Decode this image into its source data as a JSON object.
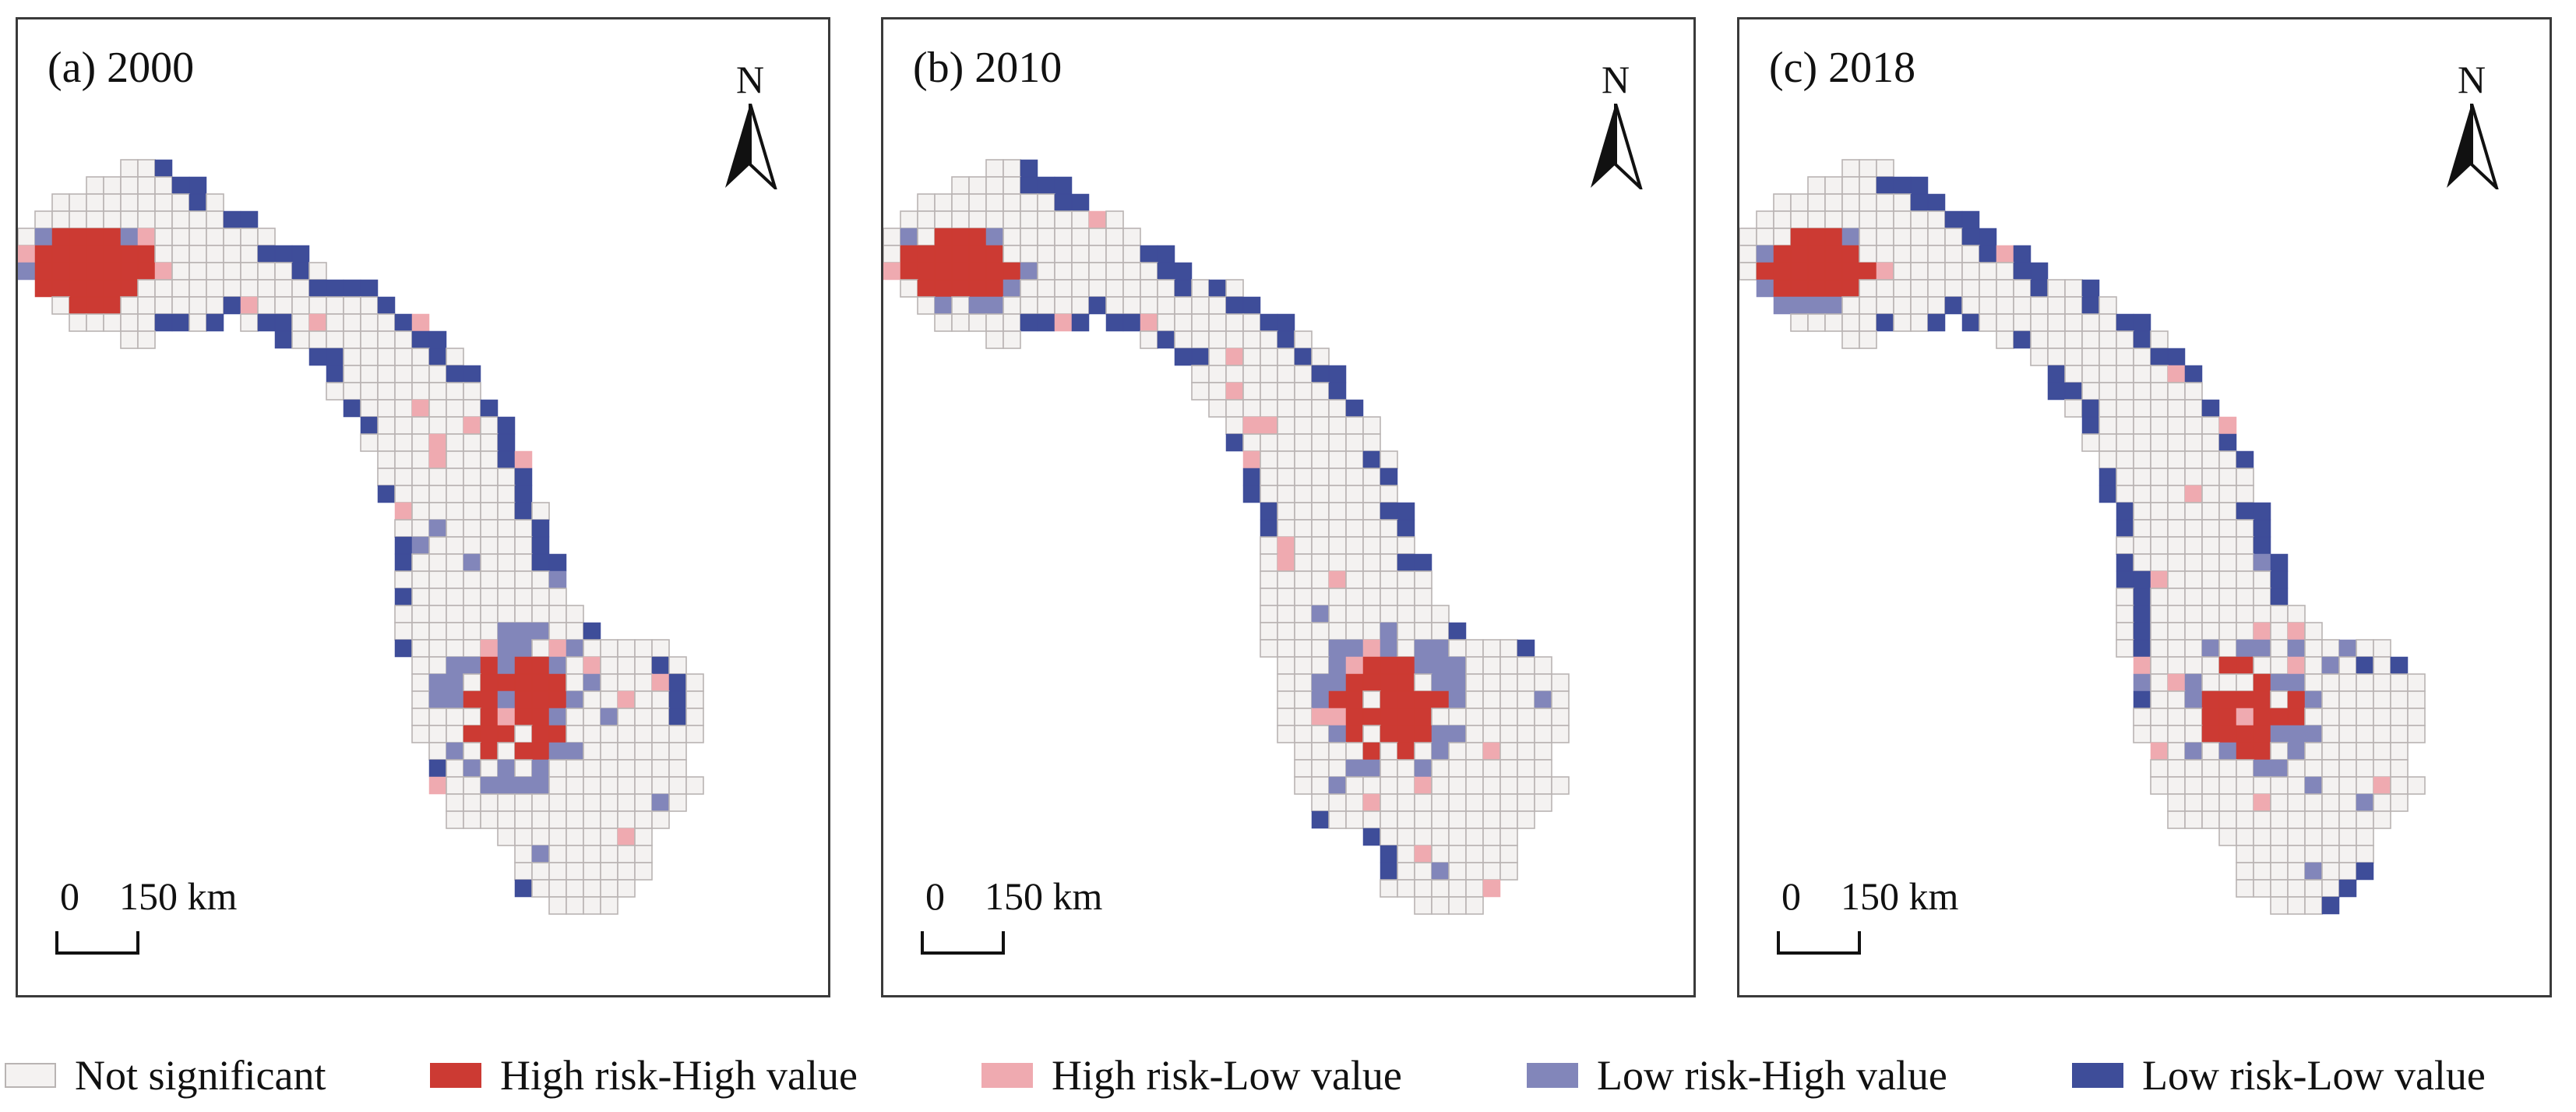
{
  "panels": [
    {
      "title": "(a) 2000"
    },
    {
      "title": "(b) 2010"
    },
    {
      "title": "(c) 2018"
    }
  ],
  "north_arrow": {
    "letter": "N"
  },
  "scale_bar": {
    "zero": "0",
    "distance": "150 km"
  },
  "legend": [
    {
      "label": "Not significant",
      "color": "#f4f2f1"
    },
    {
      "label": "High risk-High value",
      "color": "#cc3a33"
    },
    {
      "label": "High risk-Low value",
      "color": "#efaab0"
    },
    {
      "label": "Low risk-High value",
      "color": "#8286ba"
    },
    {
      "label": "Low risk-Low value",
      "color": "#3e4d99"
    }
  ],
  "colors": {
    "grid_line": "#b9b4b3",
    "frame": "#3a3a3a"
  }
}
